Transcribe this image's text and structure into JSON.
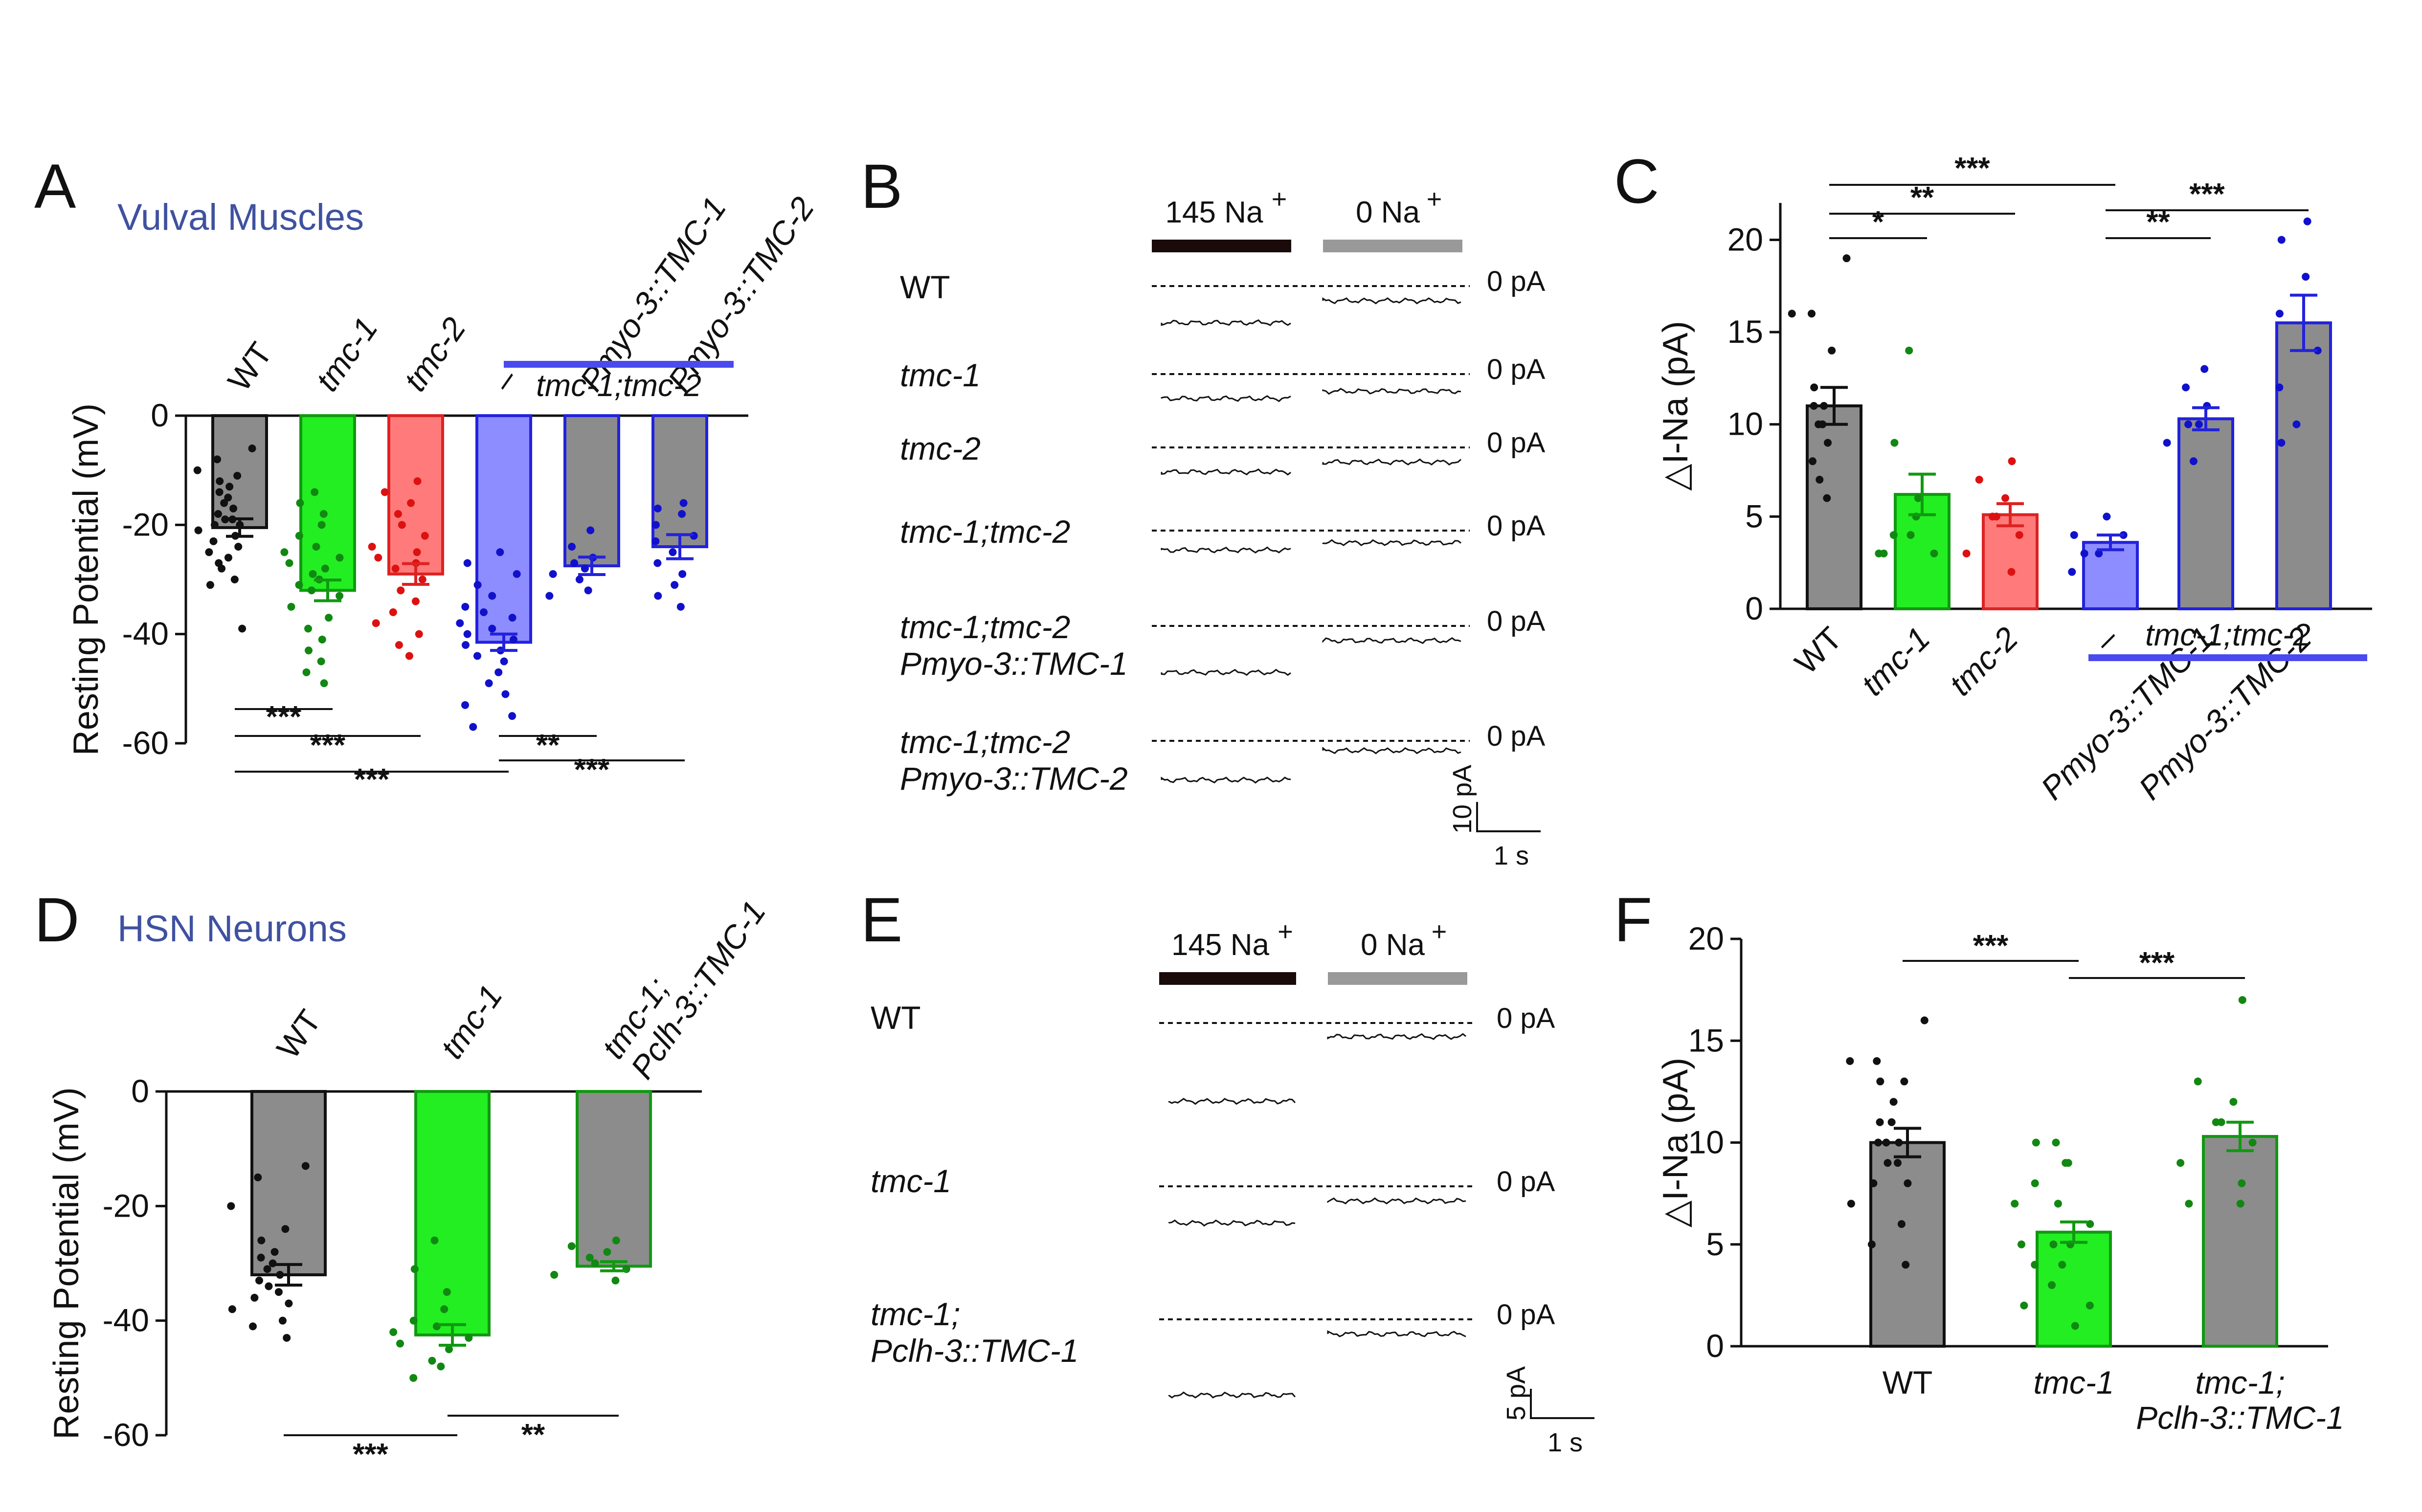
{
  "chart_data": [
    {
      "panel": "A",
      "type": "bar",
      "subtitle": "Vulval Muscles",
      "ylabel": "Resting Potential  (mV)",
      "ylim": [
        -60,
        0
      ],
      "yticks": [
        "0",
        "-20",
        "-40",
        "-60"
      ],
      "categories": [
        "WT",
        "tmc-1",
        "tmc-2",
        "–",
        "Pmyo-3::TMC-1",
        "Pmyo-3::TMC-2"
      ],
      "group_label": "tmc-1;tmc-2",
      "values": [
        -20.5,
        -32,
        -29,
        -41.5,
        -27.5,
        -24
      ],
      "sem": [
        1.6,
        1.9,
        1.9,
        1.5,
        1.6,
        2.2
      ],
      "colors": [
        "#8c8c8c",
        "#22ee22",
        "#ff7b7b",
        "#8d8dff",
        "#8c8c8c",
        "#8c8c8c"
      ],
      "edge_colors": [
        "#111111",
        "#119911",
        "#dd2222",
        "#2222dd",
        "#2222dd",
        "#2222dd"
      ],
      "dot_colors": [
        "#111111",
        "#118811",
        "#dd1111",
        "#1111cc",
        "#1111cc",
        "#1111cc"
      ],
      "points": [
        [
          -6,
          -8,
          -10,
          -11,
          -12,
          -13,
          -14,
          -15,
          -16,
          -17,
          -18,
          -19,
          -19,
          -20,
          -20,
          -21,
          -22,
          -23,
          -24,
          -25,
          -26,
          -27,
          -28,
          -30,
          -31,
          -39
        ],
        [
          -14,
          -16,
          -18,
          -20,
          -22,
          -24,
          -25,
          -26,
          -27,
          -28,
          -29,
          -30,
          -31,
          -32,
          -33,
          -35,
          -37,
          -39,
          -41,
          -43,
          -45,
          -47,
          -49
        ],
        [
          -12,
          -14,
          -16,
          -18,
          -20,
          -22,
          -24,
          -25,
          -26,
          -27,
          -28,
          -30,
          -32,
          -34,
          -36,
          -38,
          -40,
          -42,
          -44
        ],
        [
          -25,
          -27,
          -29,
          -31,
          -33,
          -35,
          -36,
          -37,
          -38,
          -39,
          -40,
          -41,
          -42,
          -43,
          -44,
          -45,
          -47,
          -49,
          -51,
          -53,
          -55,
          -57
        ],
        [
          -21,
          -24,
          -26,
          -27,
          -28,
          -29,
          -30,
          -32,
          -33
        ],
        [
          -16,
          -17,
          -18,
          -20,
          -22,
          -23,
          -25,
          -27,
          -29,
          -31,
          -33,
          -35
        ]
      ],
      "significance": [
        {
          "label": "***",
          "from": 0,
          "to": 1
        },
        {
          "label": "***",
          "from": 0,
          "to": 2
        },
        {
          "label": "***",
          "from": 0,
          "to": 3
        },
        {
          "label": "**",
          "from": 3,
          "to": 4
        },
        {
          "label": "***",
          "from": 3,
          "to": 5
        }
      ]
    },
    {
      "panel": "C",
      "type": "bar",
      "ylabel": "△I-Na  (pA)",
      "ylim": [
        0,
        22
      ],
      "yticks": [
        "0",
        "5",
        "10",
        "15",
        "20"
      ],
      "categories": [
        "WT",
        "tmc-1",
        "tmc-2",
        "–",
        "Pmyo-3::TMC-1",
        "Pmyo-3::TMC-2"
      ],
      "group_label": "tmc-1;tmc-2",
      "values": [
        11,
        6.2,
        5.1,
        3.6,
        10.3,
        15.5
      ],
      "sem": [
        1.0,
        1.1,
        0.6,
        0.4,
        0.6,
        1.5
      ],
      "colors": [
        "#8c8c8c",
        "#22ee22",
        "#ff7b7b",
        "#8d8dff",
        "#8c8c8c",
        "#8c8c8c"
      ],
      "edge_colors": [
        "#111111",
        "#119911",
        "#dd2222",
        "#2222dd",
        "#2222dd",
        "#2222dd"
      ],
      "dot_colors": [
        "#111111",
        "#118811",
        "#dd1111",
        "#1111cc",
        "#1111cc",
        "#1111cc"
      ],
      "points": [
        [
          19,
          16,
          16,
          14,
          12,
          11,
          11,
          10,
          10,
          9,
          8,
          7,
          6
        ],
        [
          14,
          9,
          6,
          5,
          4,
          4,
          3,
          3,
          3
        ],
        [
          8,
          7,
          6,
          5,
          5,
          4,
          3,
          2
        ],
        [
          5,
          4,
          4,
          3,
          3,
          2
        ],
        [
          13,
          12,
          11,
          10,
          10,
          9,
          8
        ],
        [
          21,
          20,
          18,
          16,
          14,
          12,
          10,
          9
        ]
      ],
      "significance": [
        {
          "label": "*",
          "from": 0,
          "to": 1
        },
        {
          "label": "**",
          "from": 0,
          "to": 2
        },
        {
          "label": "***",
          "from": 0,
          "to": 3
        },
        {
          "label": "**",
          "from": 3,
          "to": 4
        },
        {
          "label": "***",
          "from": 3,
          "to": 5
        }
      ]
    },
    {
      "panel": "D",
      "type": "bar",
      "subtitle": "HSN Neurons",
      "ylabel": "Resting Potential  (mV)",
      "ylim": [
        -60,
        0
      ],
      "yticks": [
        "0",
        "-20",
        "-40",
        "-60"
      ],
      "categories": [
        "WT",
        "tmc-1",
        "tmc-1;\nPclh-3::TMC-1"
      ],
      "values": [
        -32,
        -42.5,
        -30.5
      ],
      "sem": [
        1.8,
        1.8,
        0.8
      ],
      "colors": [
        "#8c8c8c",
        "#22ee22",
        "#8c8c8c"
      ],
      "edge_colors": [
        "#111111",
        "#119911",
        "#119911"
      ],
      "dot_colors": [
        "#111111",
        "#118811",
        "#118811"
      ],
      "points": [
        [
          -13,
          -15,
          -20,
          -24,
          -26,
          -28,
          -29,
          -30,
          -31,
          -32,
          -33,
          -34,
          -35,
          -36,
          -37,
          -38,
          -40,
          -41,
          -43
        ],
        [
          -26,
          -31,
          -35,
          -38,
          -40,
          -41,
          -42,
          -43,
          -44,
          -45,
          -47,
          -48,
          -50
        ],
        [
          -26,
          -27,
          -28,
          -29,
          -30,
          -31,
          -32,
          -33
        ]
      ],
      "significance": [
        {
          "label": "***",
          "from": 0,
          "to": 1
        },
        {
          "label": "**",
          "from": 1,
          "to": 2
        }
      ]
    },
    {
      "panel": "F",
      "type": "bar",
      "ylabel": "△I-Na  (pA)",
      "ylim": [
        0,
        20
      ],
      "yticks": [
        "0",
        "5",
        "10",
        "15",
        "20"
      ],
      "categories": [
        "WT",
        "tmc-1",
        "tmc-1;\nPclh-3::TMC-1"
      ],
      "values": [
        10,
        5.6,
        10.3
      ],
      "sem": [
        0.7,
        0.5,
        0.7
      ],
      "colors": [
        "#8c8c8c",
        "#22ee22",
        "#8c8c8c"
      ],
      "edge_colors": [
        "#111111",
        "#119911",
        "#119911"
      ],
      "dot_colors": [
        "#111111",
        "#118811",
        "#118811"
      ],
      "points": [
        [
          16,
          14,
          14,
          13,
          13,
          12,
          11,
          11,
          10,
          10,
          10,
          9,
          9,
          8,
          8,
          7,
          6,
          5,
          4
        ],
        [
          10,
          10,
          9,
          9,
          8,
          7,
          7,
          6,
          5,
          5,
          5,
          4,
          4,
          3,
          2,
          2,
          1
        ],
        [
          17,
          13,
          12,
          11,
          11,
          10,
          9,
          8,
          7,
          7
        ]
      ],
      "significance": [
        {
          "label": "***",
          "from": 0,
          "to": 1
        },
        {
          "label": "***",
          "from": 1,
          "to": 2
        }
      ]
    }
  ],
  "panel_labels": {
    "A": "A",
    "B": "B",
    "C": "C",
    "D": "D",
    "E": "E",
    "F": "F"
  },
  "trace_panels": {
    "B": {
      "solution_high": "145 Na",
      "solution_low": "0 Na",
      "superscript": "+",
      "rows": [
        {
          "label": "WT",
          "italic": false
        },
        {
          "label": "tmc-1",
          "italic": true
        },
        {
          "label": "tmc-2",
          "italic": true
        },
        {
          "label": "tmc-1;tmc-2",
          "italic": true
        },
        {
          "label": "tmc-1;tmc-2",
          "label2": "Pmyo-3::TMC-1",
          "italic": true
        },
        {
          "label": "tmc-1;tmc-2",
          "label2": "Pmyo-3::TMC-2",
          "italic": true
        }
      ],
      "zero_label": "0 pA",
      "scale_y": "10 pA",
      "scale_x": "1 s"
    },
    "E": {
      "solution_high": "145 Na",
      "solution_low": "0 Na",
      "superscript": "+",
      "rows": [
        {
          "label": "WT",
          "italic": false
        },
        {
          "label": "tmc-1",
          "italic": true
        },
        {
          "label": "tmc-1;",
          "label2": "Pclh-3::TMC-1",
          "italic": true
        }
      ],
      "zero_label": "0 pA",
      "scale_y": "5 pA",
      "scale_x": "1 s"
    }
  }
}
